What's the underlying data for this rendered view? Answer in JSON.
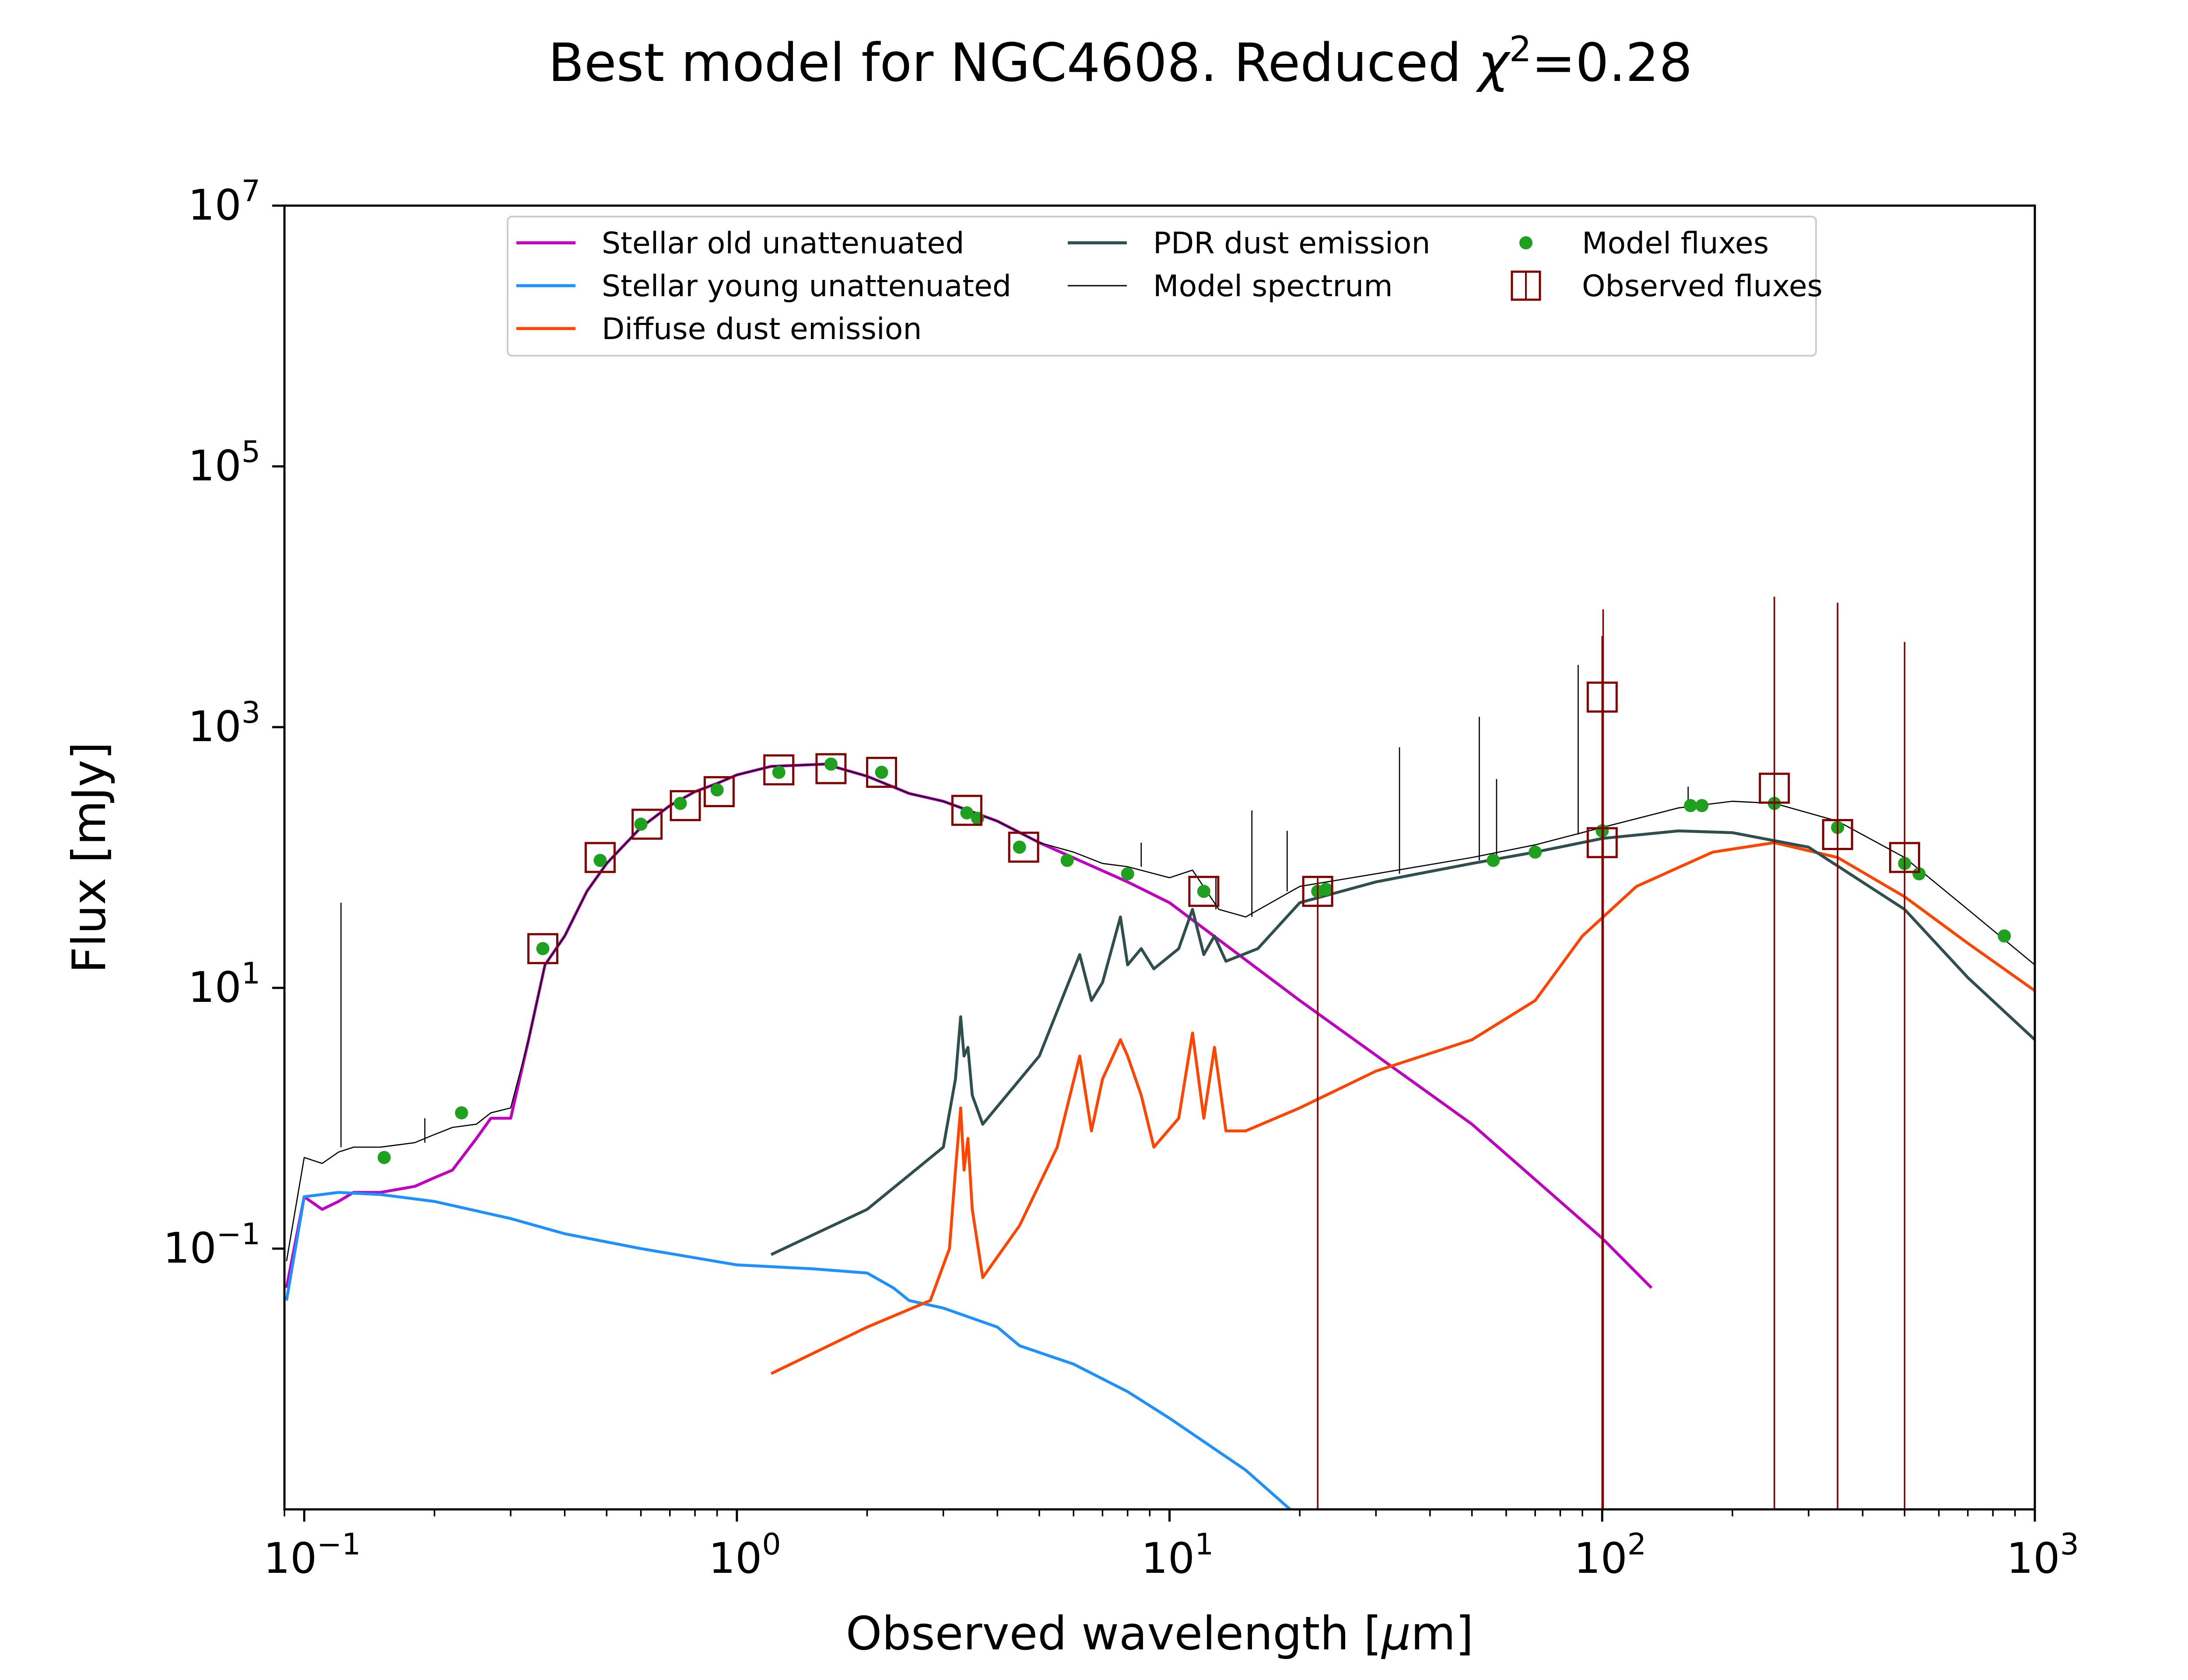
{
  "chart_data": {
    "type": "line",
    "title_prefix": "Best model for NGC4608. Reduced ",
    "title_chi": "χ",
    "title_exp": "2",
    "title_suffix": "=0.28",
    "xlabel_prefix": "Observed wavelength [",
    "xlabel_mu": "μ",
    "xlabel_suffix": "m]",
    "ylabel": "Flux [mJy]",
    "xscale": "log",
    "yscale": "log",
    "xlim": [
      0.09,
      1000
    ],
    "ylim": [
      0.001,
      10000000
    ],
    "grid": false,
    "legend_placement": "upper center",
    "x_ticks": [
      {
        "value": 0.1,
        "base": "10",
        "exp": "−1"
      },
      {
        "value": 1,
        "base": "10",
        "exp": "0"
      },
      {
        "value": 10,
        "base": "10",
        "exp": "1"
      },
      {
        "value": 100,
        "base": "10",
        "exp": "2"
      },
      {
        "value": 1000,
        "base": "10",
        "exp": "3"
      }
    ],
    "y_ticks": [
      {
        "value": 0.1,
        "base": "10",
        "exp": "−1"
      },
      {
        "value": 10,
        "base": "10",
        "exp": "1"
      },
      {
        "value": 1000,
        "base": "10",
        "exp": "3"
      },
      {
        "value": 100000,
        "base": "10",
        "exp": "5"
      },
      {
        "value": 10000000,
        "base": "10",
        "exp": "7"
      }
    ],
    "legend": [
      {
        "label": "Stellar old unattenuated",
        "kind": "line",
        "color": "#bf00bf",
        "col": 0,
        "row": 0
      },
      {
        "label": "Stellar young unattenuated",
        "kind": "line",
        "color": "#1e90ff",
        "col": 0,
        "row": 1
      },
      {
        "label": "Diffuse dust emission",
        "kind": "line",
        "color": "#ff4500",
        "col": 0,
        "row": 2
      },
      {
        "label": "PDR dust emission",
        "kind": "line",
        "color": "#2f4f4f",
        "col": 1,
        "row": 0
      },
      {
        "label": "Model spectrum",
        "kind": "thinline",
        "color": "#000000",
        "col": 1,
        "row": 1
      },
      {
        "label": "Model fluxes",
        "kind": "dot",
        "color": "#1fa11f",
        "col": 2,
        "row": 0
      },
      {
        "label": "Observed fluxes",
        "kind": "square",
        "color": "#800000",
        "col": 2,
        "row": 1
      }
    ],
    "series": [
      {
        "name": "Stellar old unattenuated",
        "color": "#bf00bf",
        "width": 2,
        "x": [
          0.091,
          0.1,
          0.11,
          0.12,
          0.13,
          0.15,
          0.18,
          0.2,
          0.22,
          0.25,
          0.27,
          0.3,
          0.33,
          0.36,
          0.4,
          0.45,
          0.5,
          0.6,
          0.7,
          0.8,
          0.9,
          1.0,
          1.2,
          1.6,
          2.0,
          2.5,
          3.0,
          4.0,
          5.0,
          8.0,
          10,
          20,
          50,
          100,
          130
        ],
        "y": [
          0.05,
          0.25,
          0.2,
          0.23,
          0.27,
          0.27,
          0.3,
          0.35,
          0.4,
          0.7,
          1.0,
          1.0,
          4.0,
          15,
          25,
          55,
          90,
          170,
          250,
          320,
          370,
          430,
          500,
          520,
          420,
          310,
          270,
          190,
          130,
          65,
          45,
          8.0,
          0.9,
          0.12,
          0.05
        ]
      },
      {
        "name": "Stellar young unattenuated",
        "color": "#1e90ff",
        "width": 2,
        "x": [
          0.091,
          0.1,
          0.12,
          0.15,
          0.2,
          0.3,
          0.4,
          0.6,
          1.0,
          1.5,
          2.0,
          2.3,
          2.5,
          3.0,
          4.0,
          4.5,
          6.0,
          8.0,
          10,
          15,
          19
        ],
        "y": [
          0.04,
          0.25,
          0.27,
          0.26,
          0.23,
          0.17,
          0.13,
          0.1,
          0.075,
          0.07,
          0.065,
          0.05,
          0.04,
          0.035,
          0.025,
          0.018,
          0.013,
          0.008,
          0.005,
          0.002,
          0.001
        ]
      },
      {
        "name": "Diffuse dust emission",
        "color": "#ff4500",
        "width": 2,
        "x": [
          1.2,
          2.0,
          2.8,
          3.1,
          3.2,
          3.29,
          3.35,
          3.42,
          3.5,
          3.7,
          4.5,
          5.5,
          6.2,
          6.6,
          7.0,
          7.7,
          8.0,
          8.6,
          9.2,
          10.5,
          11.3,
          12.0,
          12.7,
          13.5,
          15,
          20,
          30,
          50,
          70,
          90,
          120,
          180,
          250,
          350,
          500,
          700,
          1000
        ],
        "y": [
          0.011,
          0.025,
          0.04,
          0.1,
          0.4,
          1.2,
          0.4,
          0.7,
          0.2,
          0.06,
          0.15,
          0.6,
          3.0,
          0.8,
          2.0,
          4.0,
          3.0,
          1.5,
          0.6,
          1.0,
          4.5,
          1.0,
          3.5,
          0.8,
          0.8,
          1.2,
          2.3,
          4.0,
          8.0,
          25,
          60,
          110,
          130,
          100,
          50,
          22,
          9.5
        ]
      },
      {
        "name": "PDR dust emission",
        "color": "#2f4f4f",
        "width": 2,
        "x": [
          1.2,
          2.0,
          3.0,
          3.2,
          3.29,
          3.35,
          3.42,
          3.5,
          3.7,
          5.0,
          6.2,
          6.6,
          7.0,
          7.7,
          8.0,
          8.6,
          9.2,
          10.5,
          11.3,
          12.0,
          12.7,
          13.5,
          16,
          20,
          30,
          50,
          70,
          100,
          150,
          200,
          300,
          500,
          700,
          1000
        ],
        "y": [
          0.09,
          0.2,
          0.6,
          2.0,
          6.0,
          3.0,
          3.5,
          1.5,
          0.9,
          3.0,
          18,
          8.0,
          11,
          35,
          15,
          20,
          14,
          20,
          40,
          18,
          25,
          16,
          20,
          45,
          65,
          90,
          110,
          140,
          160,
          155,
          120,
          40,
          12,
          4.0
        ]
      },
      {
        "name": "Model spectrum",
        "color": "#000000",
        "width": 0.8,
        "x": [
          0.091,
          0.1,
          0.11,
          0.12,
          0.13,
          0.15,
          0.18,
          0.2,
          0.22,
          0.25,
          0.27,
          0.3,
          0.33,
          0.36,
          0.4,
          0.45,
          0.5,
          0.6,
          0.7,
          0.8,
          0.9,
          1.0,
          1.2,
          1.6,
          2.0,
          2.5,
          3.0,
          4.0,
          5.0,
          6.0,
          7.0,
          8.0,
          10,
          11.3,
          13,
          15,
          20,
          30,
          50,
          70,
          100,
          150,
          200,
          250,
          350,
          500,
          700,
          1000
        ],
        "y": [
          0.08,
          0.5,
          0.45,
          0.55,
          0.6,
          0.6,
          0.65,
          0.75,
          0.85,
          0.9,
          1.1,
          1.2,
          4.0,
          15,
          25,
          55,
          90,
          170,
          250,
          320,
          370,
          430,
          500,
          520,
          420,
          310,
          270,
          190,
          130,
          110,
          90,
          85,
          70,
          80,
          40,
          35,
          60,
          75,
          100,
          125,
          170,
          240,
          270,
          260,
          190,
          100,
          40,
          15
        ]
      },
      {
        "name": "Model spectrum emission lines",
        "color": "#000000",
        "width": 0.8,
        "segments": true,
        "x": [
          0.1216,
          0.1216,
          0.19,
          0.19,
          8.6,
          8.6,
          12.8,
          12.8,
          15.5,
          15.5,
          18.7,
          18.7,
          34,
          34,
          52,
          52,
          57,
          57,
          88,
          88,
          100,
          100,
          158,
          158
        ],
        "y": [
          0.6,
          45,
          0.65,
          1.0,
          85,
          130,
          40,
          70,
          35,
          230,
          55,
          160,
          75,
          700,
          95,
          1200,
          95,
          400,
          150,
          3000,
          170,
          600,
          250,
          350
        ]
      },
      {
        "name": "Model fluxes",
        "kind": "dots",
        "color": "#1fa11f",
        "x": [
          0.153,
          0.231,
          0.356,
          0.483,
          0.6,
          0.74,
          0.9,
          1.25,
          1.65,
          2.16,
          3.4,
          3.6,
          4.5,
          5.8,
          8.0,
          12,
          22,
          23,
          56,
          70,
          100,
          160,
          170,
          250,
          350,
          500,
          540,
          850
        ],
        "y": [
          0.5,
          1.1,
          20,
          95,
          180,
          260,
          330,
          450,
          520,
          450,
          220,
          200,
          120,
          95,
          75,
          55,
          55,
          57,
          95,
          110,
          160,
          250,
          250,
          260,
          170,
          90,
          75,
          25
        ]
      },
      {
        "name": "Observed fluxes",
        "kind": "squares",
        "color": "#800000",
        "x": [
          0.356,
          0.483,
          0.62,
          0.76,
          0.91,
          1.25,
          1.65,
          2.16,
          3.4,
          4.6,
          12,
          22,
          100,
          100,
          250,
          350,
          500
        ],
        "y": [
          20,
          100,
          180,
          250,
          320,
          470,
          480,
          450,
          230,
          120,
          55,
          55,
          130,
          1700,
          340,
          150,
          100
        ]
      },
      {
        "name": "Observed flux error bars",
        "kind": "errorbars",
        "color": "#800000",
        "x": [
          22,
          100,
          100.5,
          250,
          350,
          500
        ],
        "ylo": [
          0.001,
          0.001,
          0.001,
          0.001,
          0.001,
          0.001
        ],
        "yhi": [
          70,
          5000,
          8000,
          10000,
          9000,
          4500
        ]
      }
    ]
  }
}
